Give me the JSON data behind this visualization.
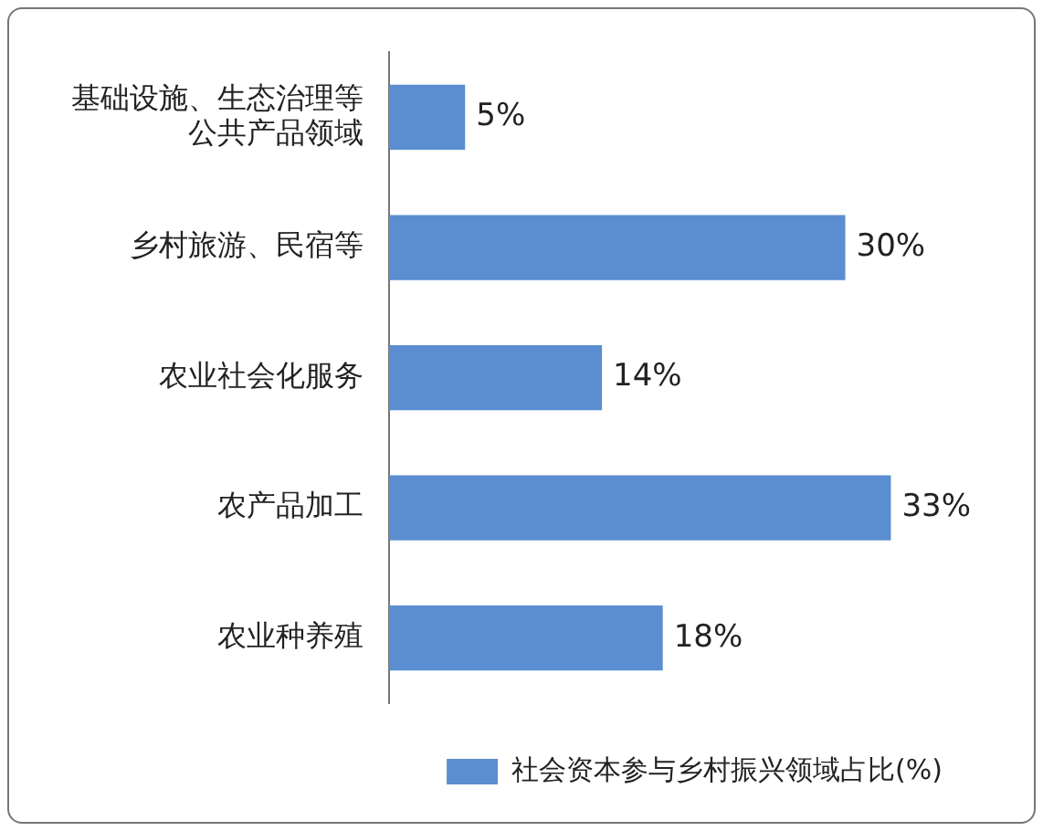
{
  "chart_data": {
    "type": "bar",
    "orientation": "horizontal",
    "categories": [
      "基础设施、生态治理等公共产品领域",
      "乡村旅游、民宿等",
      "农业社会化服务",
      "农产品加工",
      "农业种养殖"
    ],
    "series": [
      {
        "name": "社会资本参与乡村振兴领域占比(%)",
        "color": "#5b8ed0",
        "values": [
          5,
          30,
          14,
          33,
          18
        ],
        "value_labels": [
          "5%",
          "30%",
          "14%",
          "33%",
          "18%"
        ]
      }
    ],
    "tick_labels": "y",
    "grid": false,
    "legend": "bottom right"
  }
}
